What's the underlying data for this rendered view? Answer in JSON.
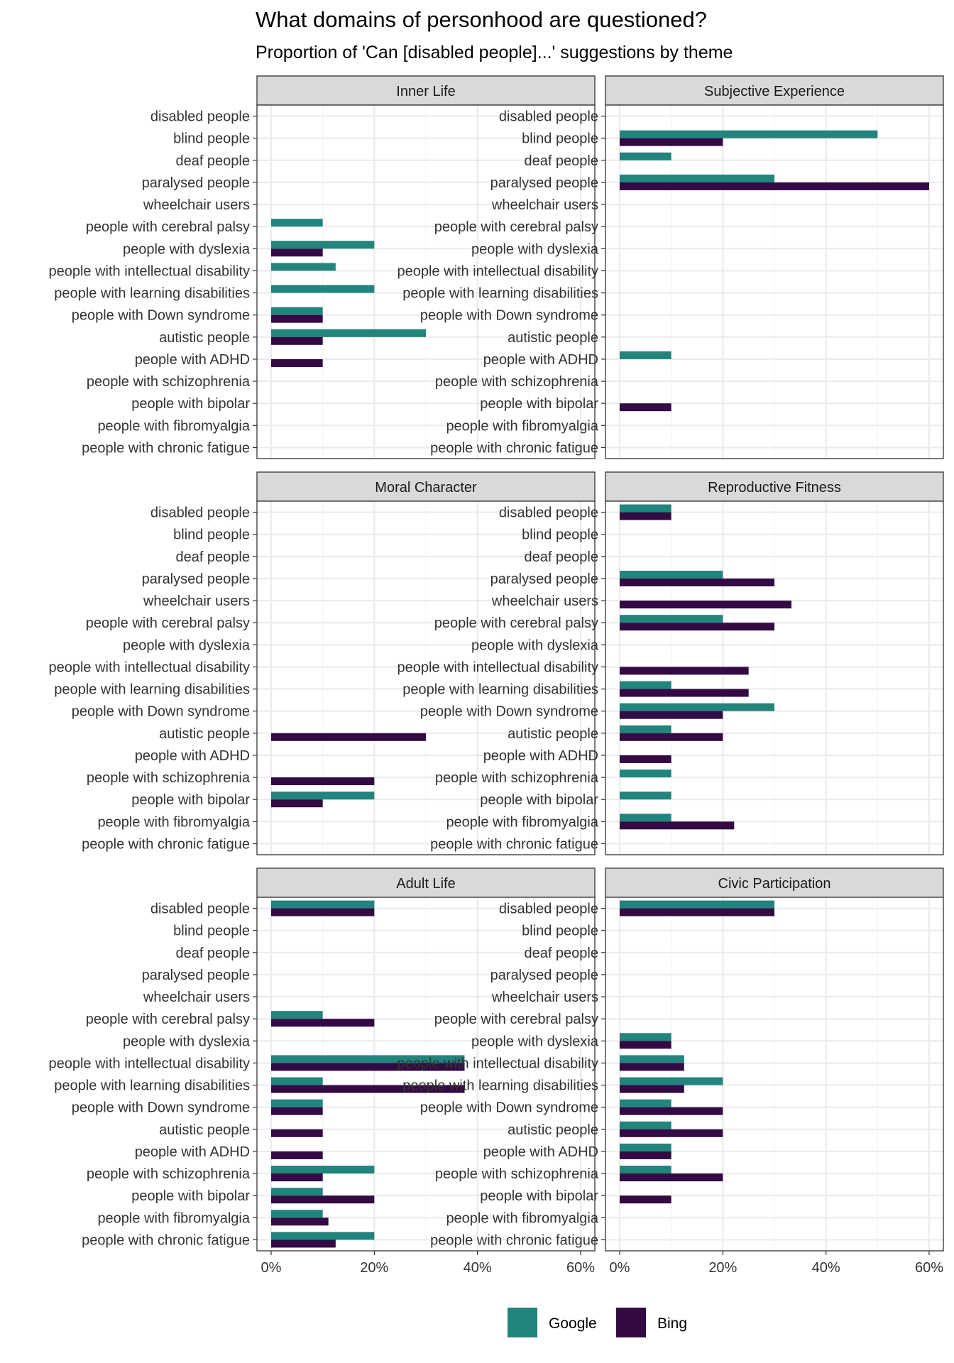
{
  "chart_data": {
    "type": "bar",
    "orientation": "horizontal",
    "title": "What domains of personhood are questioned?",
    "subtitle": "Proportion of 'Can [disabled people]...' suggestions by theme",
    "xlabel": "",
    "ylabel": "",
    "xlim": [
      0,
      60
    ],
    "x_ticks": [
      "0%",
      "20%",
      "40%",
      "60%"
    ],
    "x_tick_values": [
      0,
      20,
      40,
      60
    ],
    "grid": true,
    "legend_position": "bottom",
    "categories": [
      "disabled people",
      "blind people",
      "deaf people",
      "paralysed people",
      "wheelchair users",
      "people with cerebral palsy",
      "people with dyslexia",
      "people with intellectual disability",
      "people with learning disabilities",
      "people with Down syndrome",
      "autistic people",
      "people with ADHD",
      "people with schizophrenia",
      "people with bipolar",
      "people with fibromyalgia",
      "people with chronic fatigue"
    ],
    "legend": [
      {
        "name": "Google",
        "color": "#21847D"
      },
      {
        "name": "Bing",
        "color": "#330A44"
      }
    ],
    "panels": [
      {
        "title": "Inner Life",
        "series": [
          {
            "name": "Google",
            "values": [
              0,
              0,
              0,
              0,
              0,
              10,
              20,
              12.5,
              20,
              10,
              30,
              0,
              0,
              0,
              0,
              0
            ]
          },
          {
            "name": "Bing",
            "values": [
              0,
              0,
              0,
              0,
              0,
              0,
              10,
              0,
              0,
              10,
              10,
              10,
              0,
              0,
              0,
              0
            ]
          }
        ]
      },
      {
        "title": "Subjective Experience",
        "series": [
          {
            "name": "Google",
            "values": [
              0,
              50,
              10,
              30,
              0,
              0,
              0,
              0,
              0,
              0,
              0,
              10,
              0,
              0,
              0,
              0
            ]
          },
          {
            "name": "Bing",
            "values": [
              0,
              20,
              0,
              60,
              0,
              0,
              0,
              0,
              0,
              0,
              0,
              0,
              0,
              10,
              0,
              0
            ]
          }
        ]
      },
      {
        "title": "Moral Character",
        "series": [
          {
            "name": "Google",
            "values": [
              0,
              0,
              0,
              0,
              0,
              0,
              0,
              0,
              0,
              0,
              0,
              0,
              0,
              20,
              0,
              0
            ]
          },
          {
            "name": "Bing",
            "values": [
              0,
              0,
              0,
              0,
              0,
              0,
              0,
              0,
              0,
              0,
              30,
              0,
              20,
              10,
              0,
              0
            ]
          }
        ]
      },
      {
        "title": "Reproductive Fitness",
        "series": [
          {
            "name": "Google",
            "values": [
              10,
              0,
              0,
              20,
              0,
              20,
              0,
              0,
              10,
              30,
              10,
              0,
              10,
              10,
              10,
              0
            ]
          },
          {
            "name": "Bing",
            "values": [
              10,
              0,
              0,
              30,
              33.3,
              30,
              0,
              25,
              25,
              20,
              20,
              10,
              0,
              0,
              22.2,
              0
            ]
          }
        ]
      },
      {
        "title": "Adult Life",
        "series": [
          {
            "name": "Google",
            "values": [
              20,
              0,
              0,
              0,
              0,
              10,
              0,
              37.5,
              10,
              10,
              0,
              0,
              20,
              10,
              10,
              20
            ]
          },
          {
            "name": "Bing",
            "values": [
              20,
              0,
              0,
              0,
              0,
              20,
              0,
              37.5,
              37.5,
              10,
              10,
              10,
              10,
              20,
              11.1,
              12.5
            ]
          }
        ]
      },
      {
        "title": "Civic Participation",
        "series": [
          {
            "name": "Google",
            "values": [
              30,
              0,
              0,
              0,
              0,
              0,
              10,
              12.5,
              20,
              10,
              10,
              10,
              10,
              0,
              0,
              0
            ]
          },
          {
            "name": "Bing",
            "values": [
              30,
              0,
              0,
              0,
              0,
              0,
              10,
              12.5,
              12.5,
              20,
              20,
              10,
              20,
              10,
              0,
              0
            ]
          }
        ]
      }
    ]
  }
}
